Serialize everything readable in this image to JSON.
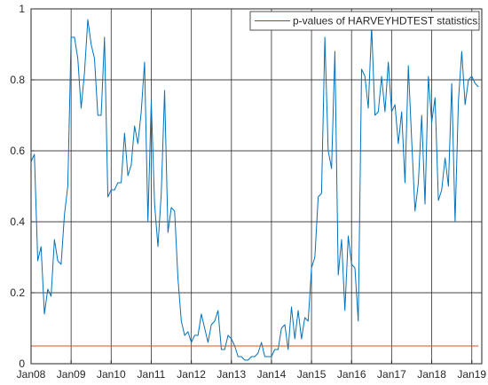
{
  "chart_data": {
    "type": "line",
    "title": "",
    "xlabel": "",
    "ylabel": "",
    "xlim": [
      "2008-01",
      "2019-04"
    ],
    "ylim": [
      0,
      1
    ],
    "grid": true,
    "legend_position": "top-right",
    "x_ticks": [
      "Jan08",
      "Jan09",
      "Jan10",
      "Jan11",
      "Jan12",
      "Jan13",
      "Jan14",
      "Jan15",
      "Jan16",
      "Jan17",
      "Jan18",
      "Jan19"
    ],
    "y_ticks": [
      "0",
      "0.2",
      "0.4",
      "0.6",
      "0.8",
      "1"
    ],
    "colors": {
      "series": "#0072BD",
      "reference": "#D95319",
      "grid": "#262626",
      "axis": "#262626"
    },
    "series": [
      {
        "name": "p-values of HARVEYHDTEST statistics:",
        "x": [
          "2008-01",
          "2008-02",
          "2008-03",
          "2008-04",
          "2008-05",
          "2008-06",
          "2008-07",
          "2008-08",
          "2008-09",
          "2008-10",
          "2008-11",
          "2008-12",
          "2009-01",
          "2009-02",
          "2009-03",
          "2009-04",
          "2009-05",
          "2009-06",
          "2009-07",
          "2009-08",
          "2009-09",
          "2009-10",
          "2009-11",
          "2009-12",
          "2010-01",
          "2010-02",
          "2010-03",
          "2010-04",
          "2010-05",
          "2010-06",
          "2010-07",
          "2010-08",
          "2010-09",
          "2010-10",
          "2010-11",
          "2010-12",
          "2011-01",
          "2011-02",
          "2011-03",
          "2011-04",
          "2011-05",
          "2011-06",
          "2011-07",
          "2011-08",
          "2011-09",
          "2011-10",
          "2011-11",
          "2011-12",
          "2012-01",
          "2012-02",
          "2012-03",
          "2012-04",
          "2012-05",
          "2012-06",
          "2012-07",
          "2012-08",
          "2012-09",
          "2012-10",
          "2012-11",
          "2012-12",
          "2013-01",
          "2013-02",
          "2013-03",
          "2013-04",
          "2013-05",
          "2013-06",
          "2013-07",
          "2013-08",
          "2013-09",
          "2013-10",
          "2013-11",
          "2013-12",
          "2014-01",
          "2014-02",
          "2014-03",
          "2014-04",
          "2014-05",
          "2014-06",
          "2014-07",
          "2014-08",
          "2014-09",
          "2014-10",
          "2014-11",
          "2014-12",
          "2015-01",
          "2015-02",
          "2015-03",
          "2015-04",
          "2015-05",
          "2015-06",
          "2015-07",
          "2015-08",
          "2015-09",
          "2015-10",
          "2015-11",
          "2015-12",
          "2016-01",
          "2016-02",
          "2016-03",
          "2016-04",
          "2016-05",
          "2016-06",
          "2016-07",
          "2016-08",
          "2016-09",
          "2016-10",
          "2016-11",
          "2016-12",
          "2017-01",
          "2017-02",
          "2017-03",
          "2017-04",
          "2017-05",
          "2017-06",
          "2017-07",
          "2017-08",
          "2017-09",
          "2017-10",
          "2017-11",
          "2017-12",
          "2018-01",
          "2018-02",
          "2018-03",
          "2018-04",
          "2018-05",
          "2018-06",
          "2018-07",
          "2018-08",
          "2018-09",
          "2018-10",
          "2018-11",
          "2018-12",
          "2019-01",
          "2019-02",
          "2019-03"
        ],
        "values": [
          0.57,
          0.59,
          0.29,
          0.33,
          0.14,
          0.21,
          0.19,
          0.35,
          0.29,
          0.28,
          0.42,
          0.5,
          0.92,
          0.92,
          0.86,
          0.72,
          0.82,
          0.97,
          0.9,
          0.86,
          0.7,
          0.7,
          0.92,
          0.47,
          0.49,
          0.49,
          0.51,
          0.51,
          0.65,
          0.53,
          0.56,
          0.67,
          0.62,
          0.71,
          0.85,
          0.4,
          0.74,
          0.45,
          0.33,
          0.48,
          0.77,
          0.37,
          0.44,
          0.43,
          0.24,
          0.12,
          0.08,
          0.09,
          0.06,
          0.08,
          0.08,
          0.14,
          0.1,
          0.06,
          0.11,
          0.12,
          0.15,
          0.04,
          0.04,
          0.08,
          0.07,
          0.05,
          0.02,
          0.02,
          0.01,
          0.01,
          0.02,
          0.02,
          0.03,
          0.06,
          0.02,
          0.02,
          0.02,
          0.04,
          0.04,
          0.1,
          0.11,
          0.04,
          0.16,
          0.07,
          0.15,
          0.07,
          0.13,
          0.12,
          0.27,
          0.3,
          0.47,
          0.48,
          0.92,
          0.6,
          0.55,
          0.88,
          0.25,
          0.35,
          0.15,
          0.36,
          0.28,
          0.27,
          0.12,
          0.83,
          0.81,
          0.72,
          0.95,
          0.7,
          0.71,
          0.81,
          0.71,
          0.85,
          0.71,
          0.73,
          0.62,
          0.71,
          0.51,
          0.84,
          0.63,
          0.43,
          0.51,
          0.7,
          0.45,
          0.81,
          0.68,
          0.75,
          0.46,
          0.49,
          0.58,
          0.5,
          0.79,
          0.4,
          0.74,
          0.88,
          0.73,
          0.8,
          0.81,
          0.79,
          0.78
        ]
      },
      {
        "name": "",
        "x": [
          "2008-01",
          "2019-03"
        ],
        "values": [
          0.05,
          0.05
        ]
      }
    ]
  }
}
